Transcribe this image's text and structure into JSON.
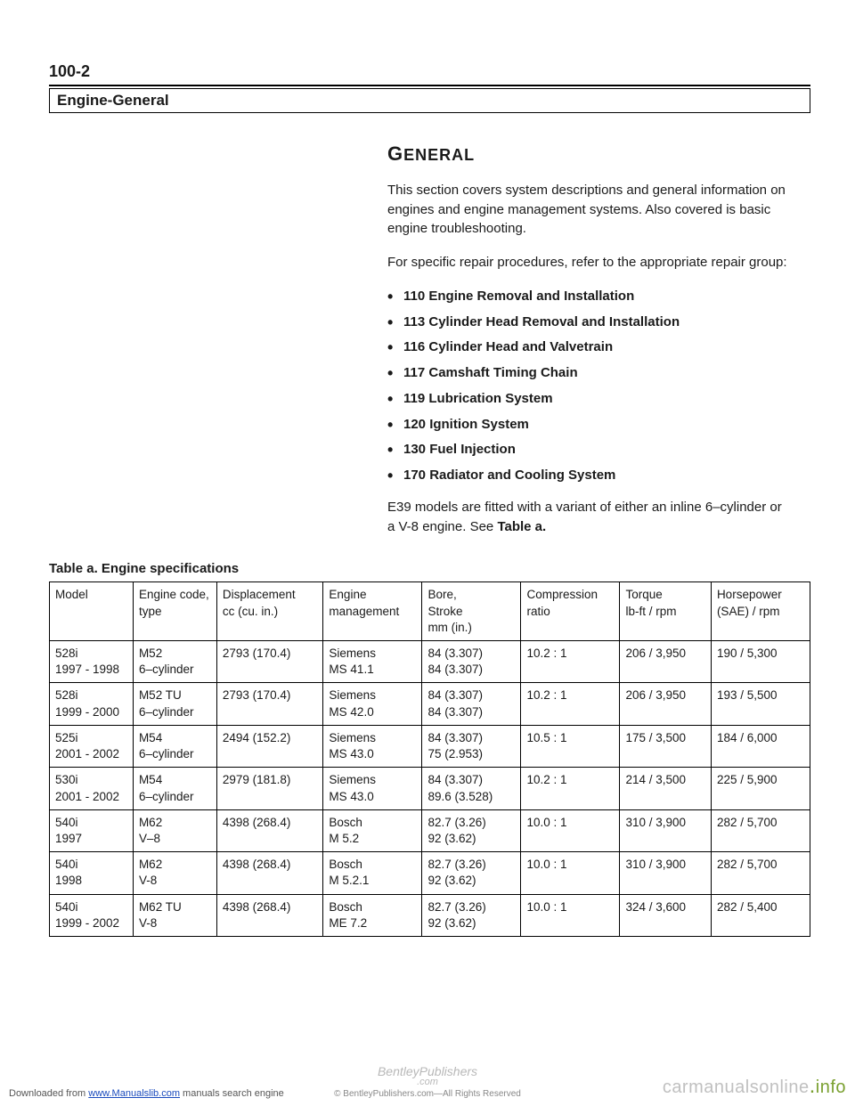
{
  "page_number": "100-2",
  "title": "Engine-General",
  "section_heading_first": "G",
  "section_heading_rest": "ENERAL",
  "para1": "This section covers system descriptions and general information on engines and engine management systems. Also covered is basic engine troubleshooting.",
  "para2": "For specific repair procedures, refer to the appropriate repair group:",
  "bullets": [
    "110 Engine Removal and Installation",
    "113 Cylinder Head Removal and Installation",
    "116 Cylinder Head and Valvetrain",
    "117 Camshaft Timing Chain",
    "119 Lubrication System",
    "120 Ignition System",
    "130 Fuel Injection",
    "170 Radiator and Cooling System"
  ],
  "para3_a": "E39 models are fitted with a variant of either an inline 6–cylinder or a V-8 engine. See ",
  "para3_b": "Table a.",
  "table_caption": "Table a. Engine specifications",
  "table": {
    "headers": [
      "Model",
      "Engine code,\ntype",
      "Displacement\ncc (cu. in.)",
      "Engine\nmanagement",
      "Bore,\nStroke\nmm (in.)",
      "Compression\nratio",
      "Torque\nlb-ft / rpm",
      "Horsepower\n(SAE) / rpm"
    ],
    "rows": [
      [
        "528i\n1997 - 1998",
        "M52\n6–cylinder",
        "2793 (170.4)",
        "Siemens\nMS 41.1",
        "84 (3.307)\n84 (3.307)",
        "10.2 : 1",
        "206 / 3,950",
        "190 / 5,300"
      ],
      [
        "528i\n1999 - 2000",
        "M52 TU\n6–cylinder",
        "2793 (170.4)",
        "Siemens\nMS 42.0",
        "84 (3.307)\n84 (3.307)",
        "10.2 : 1",
        "206 / 3,950",
        "193 / 5,500"
      ],
      [
        "525i\n2001 - 2002",
        "M54\n6–cylinder",
        "2494 (152.2)",
        "Siemens\nMS 43.0",
        "84 (3.307)\n75 (2.953)",
        "10.5 : 1",
        "175 / 3,500",
        "184 / 6,000"
      ],
      [
        "530i\n2001 - 2002",
        "M54\n6–cylinder",
        "2979 (181.8)",
        "Siemens\nMS 43.0",
        "84 (3.307)\n89.6 (3.528)",
        "10.2 : 1",
        "214 / 3,500",
        "225 / 5,900"
      ],
      [
        "540i\n1997",
        "M62\nV–8",
        "4398 (268.4)",
        "Bosch\nM 5.2",
        "82.7 (3.26)\n92 (3.62)",
        "10.0 : 1",
        "310 / 3,900",
        "282 / 5,700"
      ],
      [
        "540i\n1998",
        "M62\nV-8",
        "4398 (268.4)",
        "Bosch\nM 5.2.1",
        "82.7 (3.26)\n92 (3.62)",
        "10.0 : 1",
        "310 / 3,900",
        "282 / 5,700"
      ],
      [
        "540i\n1999 - 2002",
        "M62 TU\nV-8",
        "4398 (268.4)",
        "Bosch\nME 7.2",
        "82.7 (3.26)\n92 (3.62)",
        "10.0 : 1",
        "324 / 3,600",
        "282 / 5,400"
      ]
    ],
    "col_widths": [
      "11%",
      "11%",
      "14%",
      "13%",
      "13%",
      "13%",
      "12%",
      "13%"
    ]
  },
  "footer": {
    "left_prefix": "Downloaded from ",
    "left_link": "www.Manualslib.com",
    "left_suffix": " manuals search engine",
    "center_top": "BentleyPublishers",
    "center_mid": ".com",
    "center_bottom": "© BentleyPublishers.com—All Rights Reserved",
    "right_a": "carmanualsonline",
    "right_b": ".",
    "right_c": "info"
  }
}
